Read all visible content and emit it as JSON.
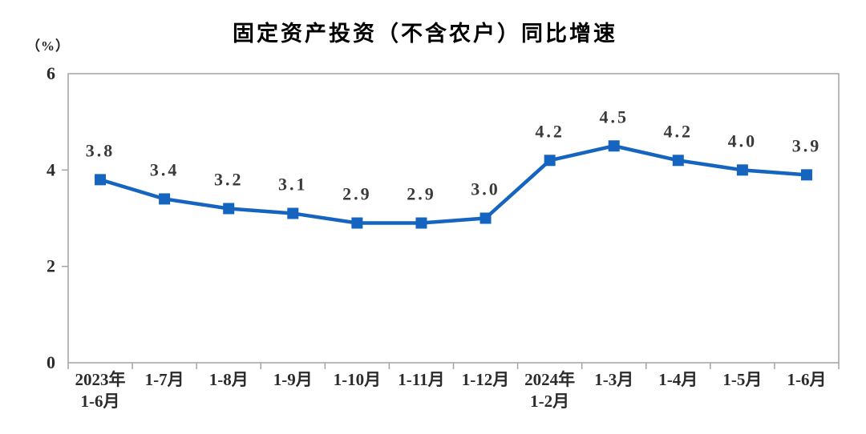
{
  "chart_data": {
    "type": "line",
    "title": "固定资产投资（不含农户）同比增速",
    "ylabel": "（%）",
    "xlabel": "",
    "categories": [
      "2023年\n1-6月",
      "1-7月",
      "1-8月",
      "1-9月",
      "1-10月",
      "1-11月",
      "1-12月",
      "2024年\n1-2月",
      "1-3月",
      "1-4月",
      "1-5月",
      "1-6月"
    ],
    "values": [
      3.8,
      3.4,
      3.2,
      3.1,
      2.9,
      2.9,
      3.0,
      4.2,
      4.5,
      4.2,
      4.0,
      3.9
    ],
    "data_labels": [
      "3.8",
      "3.4",
      "3.2",
      "3.1",
      "2.9",
      "2.9",
      "3.0",
      "4.2",
      "4.5",
      "4.2",
      "4.0",
      "3.9"
    ],
    "ylim": [
      0,
      6
    ],
    "yticks": [
      0,
      2,
      4,
      6
    ],
    "grid": false,
    "legend": "none",
    "marker": "square"
  },
  "style": {
    "line_color": "#1565C0",
    "marker_color": "#1565C0",
    "axis_color": "#A3A3A3",
    "tick_label_color": "#2b2b2b",
    "data_label_color": "#3a3a3a",
    "title_color": "#000000",
    "background": "#ffffff"
  }
}
